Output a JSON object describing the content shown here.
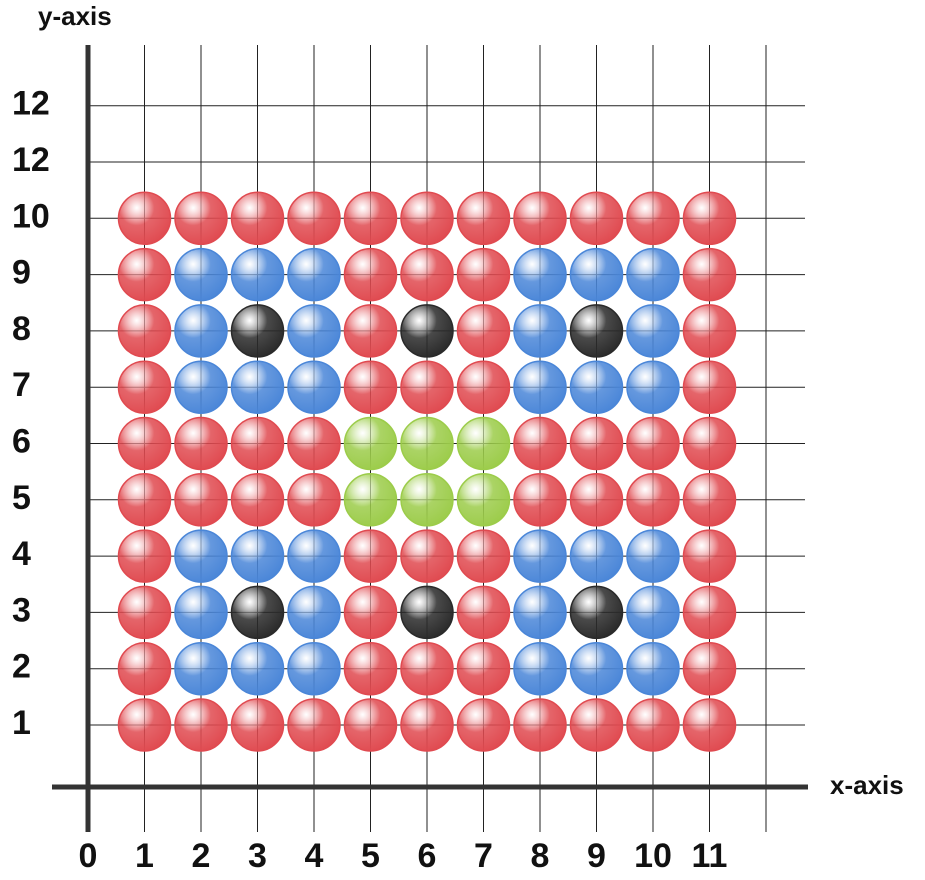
{
  "y_axis": {
    "label": "y-axis",
    "ticks": [
      "1",
      "2",
      "3",
      "4",
      "5",
      "6",
      "7",
      "8",
      "9",
      "10",
      "12",
      "12"
    ]
  },
  "x_axis": {
    "label": "x-axis",
    "ticks": [
      "0",
      "1",
      "2",
      "3",
      "4",
      "5",
      "6",
      "7",
      "8",
      "9",
      "10",
      "11"
    ]
  },
  "balls": [
    [
      "#e04a50",
      "#e04a50",
      "#e04a50",
      "#e04a50",
      "#e04a50",
      "#e04a50",
      "#e04a50",
      "#e04a50",
      "#e04a50",
      "#e04a50",
      "#e04a50"
    ],
    [
      "#e04a50",
      "#4a86d8",
      "#4a86d8",
      "#4a86d8",
      "#e04a50",
      "#e04a50",
      "#e04a50",
      "#4a86d8",
      "#4a86d8",
      "#4a86d8",
      "#e04a50"
    ],
    [
      "#e04a50",
      "#4a86d8",
      "#2a2a2a",
      "#4a86d8",
      "#e04a50",
      "#2a2a2a",
      "#e04a50",
      "#4a86d8",
      "#2a2a2a",
      "#4a86d8",
      "#e04a50"
    ],
    [
      "#e04a50",
      "#4a86d8",
      "#4a86d8",
      "#4a86d8",
      "#e04a50",
      "#e04a50",
      "#e04a50",
      "#4a86d8",
      "#4a86d8",
      "#4a86d8",
      "#e04a50"
    ],
    [
      "#e04a50",
      "#e04a50",
      "#e04a50",
      "#e04a50",
      "#9ccc4a",
      "#9ccc4a",
      "#9ccc4a",
      "#e04a50",
      "#e04a50",
      "#e04a50",
      "#e04a50"
    ],
    [
      "#e04a50",
      "#e04a50",
      "#e04a50",
      "#e04a50",
      "#9ccc4a",
      "#9ccc4a",
      "#9ccc4a",
      "#e04a50",
      "#e04a50",
      "#e04a50",
      "#e04a50"
    ],
    [
      "#e04a50",
      "#4a86d8",
      "#4a86d8",
      "#4a86d8",
      "#e04a50",
      "#e04a50",
      "#e04a50",
      "#4a86d8",
      "#4a86d8",
      "#4a86d8",
      "#e04a50"
    ],
    [
      "#e04a50",
      "#4a86d8",
      "#2a2a2a",
      "#4a86d8",
      "#e04a50",
      "#2a2a2a",
      "#e04a50",
      "#4a86d8",
      "#2a2a2a",
      "#4a86d8",
      "#e04a50"
    ],
    [
      "#e04a50",
      "#4a86d8",
      "#4a86d8",
      "#4a86d8",
      "#e04a50",
      "#e04a50",
      "#e04a50",
      "#4a86d8",
      "#4a86d8",
      "#4a86d8",
      "#e04a50"
    ],
    [
      "#e04a50",
      "#e04a50",
      "#e04a50",
      "#e04a50",
      "#e04a50",
      "#e04a50",
      "#e04a50",
      "#e04a50",
      "#e04a50",
      "#e04a50",
      "#e04a50"
    ]
  ]
}
